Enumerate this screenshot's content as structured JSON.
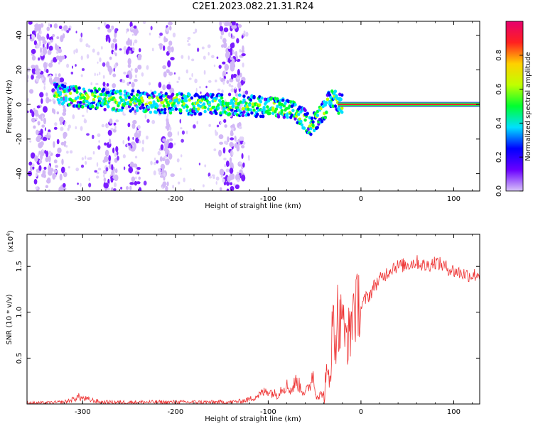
{
  "title": "C2E1.2023.082.21.31.R24",
  "colors": {
    "snr_line": "#ee3333",
    "frame": "#000000",
    "grid_tick": "#000000"
  },
  "chart_data": [
    {
      "type": "heatmap",
      "xlabel": "Height of straight line (km)",
      "ylabel": "Frequency (Hz)",
      "xlim": [
        -360,
        128
      ],
      "ylim": [
        -50,
        48
      ],
      "x_ticks": [
        -300,
        -200,
        -100,
        0,
        100
      ],
      "x_tick_labels": [
        "-300",
        "-200",
        "-100",
        "0",
        "100"
      ],
      "y_ticks": [
        -40,
        -20,
        0,
        20,
        40
      ],
      "y_tick_labels": [
        "-40",
        "-20",
        "0",
        "20",
        "40"
      ],
      "colorbar": {
        "label": "Normalized spectral amplitude",
        "range": [
          0,
          1
        ],
        "ticks": [
          0,
          0.2,
          0.4,
          0.6,
          0.8
        ],
        "tick_labels": [
          "0.0",
          "0.2",
          "0.4",
          "0.6",
          "0.8"
        ],
        "colormap": [
          "#d8c4f8",
          "#6a00ff",
          "#0000ff",
          "#00e0ff",
          "#00ff30",
          "#c0ff00",
          "#ffd000",
          "#ff2020",
          "#e6006e"
        ]
      },
      "ridge": {
        "x": [
          -325,
          -300,
          -280,
          -260,
          -240,
          -220,
          -200,
          -180,
          -160,
          -140,
          -120,
          -100,
          -90,
          -80,
          -70,
          -60,
          -55,
          -50,
          -45,
          -40,
          -35,
          -30,
          -25,
          -20,
          0,
          50,
          100,
          128
        ],
        "y": [
          6,
          4,
          3,
          2,
          2,
          1,
          1,
          0,
          0,
          0,
          -1,
          -1,
          -2,
          -3,
          -5,
          -9,
          -12,
          -10,
          -6,
          -3,
          1,
          4,
          1,
          0,
          0,
          0,
          0,
          0
        ]
      },
      "streak_x": [
        -350,
        -340,
        -325,
        -270,
        -245,
        -210,
        -145,
        -133
      ]
    },
    {
      "type": "line",
      "xlabel": "Height of straight line (km)",
      "ylabel": "SNR (10 * v/v)",
      "yscale_label": "(x10",
      "yscale_exp": "4",
      "yscale_close": ")",
      "xlim": [
        -360,
        128
      ],
      "ylim": [
        0,
        1.85
      ],
      "x_ticks": [
        -300,
        -200,
        -100,
        0,
        100
      ],
      "x_tick_labels": [
        "-300",
        "-200",
        "-100",
        "0",
        "100"
      ],
      "y_ticks": [
        0.5,
        1.0,
        1.5
      ],
      "y_tick_labels": [
        "0.5",
        "1.0",
        "1.5"
      ],
      "series": [
        {
          "x": [
            -360,
            -340,
            -320,
            -310,
            -305,
            -300,
            -290,
            -280,
            -260,
            -240,
            -220,
            -200,
            -180,
            -160,
            -140,
            -130,
            -120,
            -110,
            -100,
            -95,
            -90,
            -85,
            -80,
            -75,
            -70,
            -65,
            -60,
            -55,
            -52,
            -50,
            -48,
            -45,
            -42,
            -40,
            -38,
            -35,
            -32,
            -30,
            -28,
            -25,
            -22,
            -20,
            -18,
            -15,
            -12,
            -10,
            -8,
            -5,
            -2,
            0,
            5,
            10,
            15,
            20,
            25,
            30,
            35,
            40,
            50,
            60,
            70,
            80,
            90,
            100,
            110,
            120,
            128
          ],
          "y": [
            0.01,
            0.01,
            0.02,
            0.05,
            0.08,
            0.06,
            0.04,
            0.02,
            0.02,
            0.02,
            0.02,
            0.02,
            0.02,
            0.02,
            0.02,
            0.03,
            0.05,
            0.1,
            0.15,
            0.12,
            0.1,
            0.18,
            0.2,
            0.15,
            0.25,
            0.18,
            0.12,
            0.2,
            0.35,
            0.18,
            0.1,
            0.08,
            0.12,
            0.1,
            0.15,
            0.3,
            0.6,
            0.9,
            0.7,
            1.0,
            0.8,
            1.25,
            0.6,
            0.8,
            0.7,
            0.95,
            1.1,
            1.0,
            1.15,
            1.05,
            1.15,
            1.2,
            1.3,
            1.35,
            1.4,
            1.45,
            1.5,
            1.5,
            1.52,
            1.55,
            1.5,
            1.55,
            1.5,
            1.45,
            1.42,
            1.4,
            1.42
          ]
        }
      ]
    }
  ]
}
